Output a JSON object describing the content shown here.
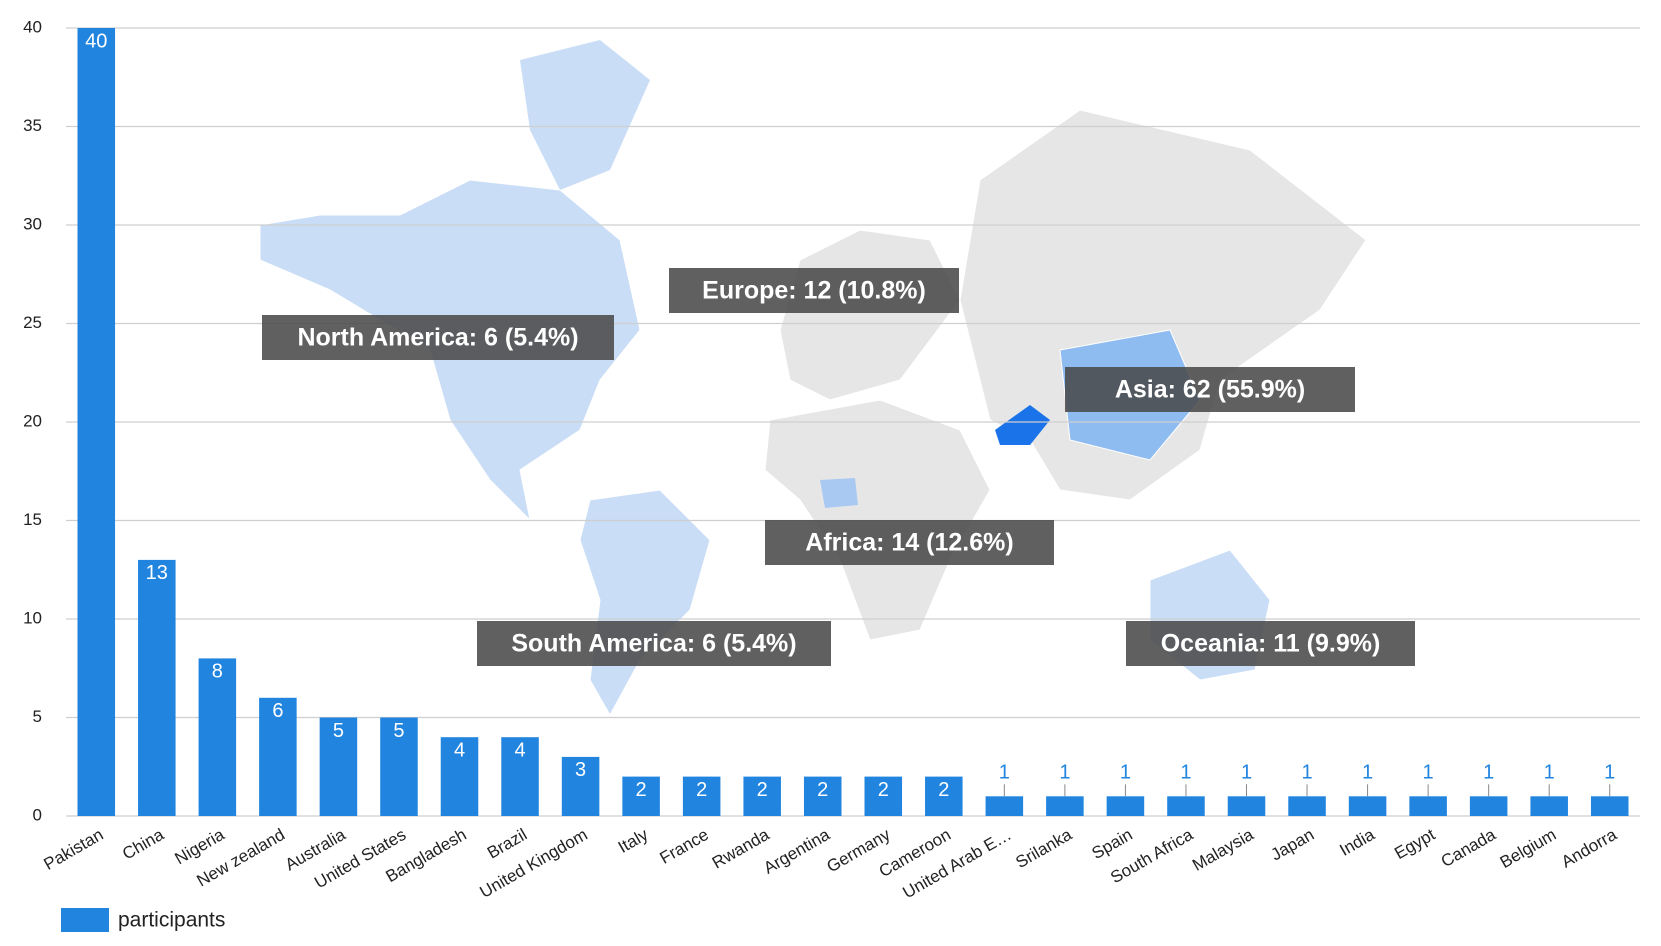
{
  "chart_data": {
    "type": "bar",
    "categories": [
      "Pakistan",
      "China",
      "Nigeria",
      "New zealand",
      "Australia",
      "United States",
      "Bangladesh",
      "Brazil",
      "United Kingdom",
      "Italy",
      "France",
      "Rwanda",
      "Argentina",
      "Germany",
      "Cameroon",
      "United Arab E…",
      "Srilanka",
      "Spain",
      "South Africa",
      "Malaysia",
      "Japan",
      "India",
      "Egypt",
      "Canada",
      "Belgium",
      "Andorra"
    ],
    "series": [
      {
        "name": "participants",
        "color": "#2185e0",
        "values": [
          40,
          13,
          8,
          6,
          5,
          5,
          4,
          4,
          3,
          2,
          2,
          2,
          2,
          2,
          2,
          1,
          1,
          1,
          1,
          1,
          1,
          1,
          1,
          1,
          1,
          1
        ]
      }
    ],
    "ylim": [
      0,
      40
    ],
    "yticks": [
      0,
      5,
      10,
      15,
      20,
      25,
      30,
      35,
      40
    ],
    "grid": true,
    "legend": "bottom-left",
    "annotations": [
      "Europe: 12 (10.8%)",
      "North America: 6 (5.4%)",
      "Asia: 62 (55.9%)",
      "Africa: 14 (12.6%)",
      "South America: 6 (5.4%)",
      "Oceania: 11 (9.9%)"
    ]
  }
}
